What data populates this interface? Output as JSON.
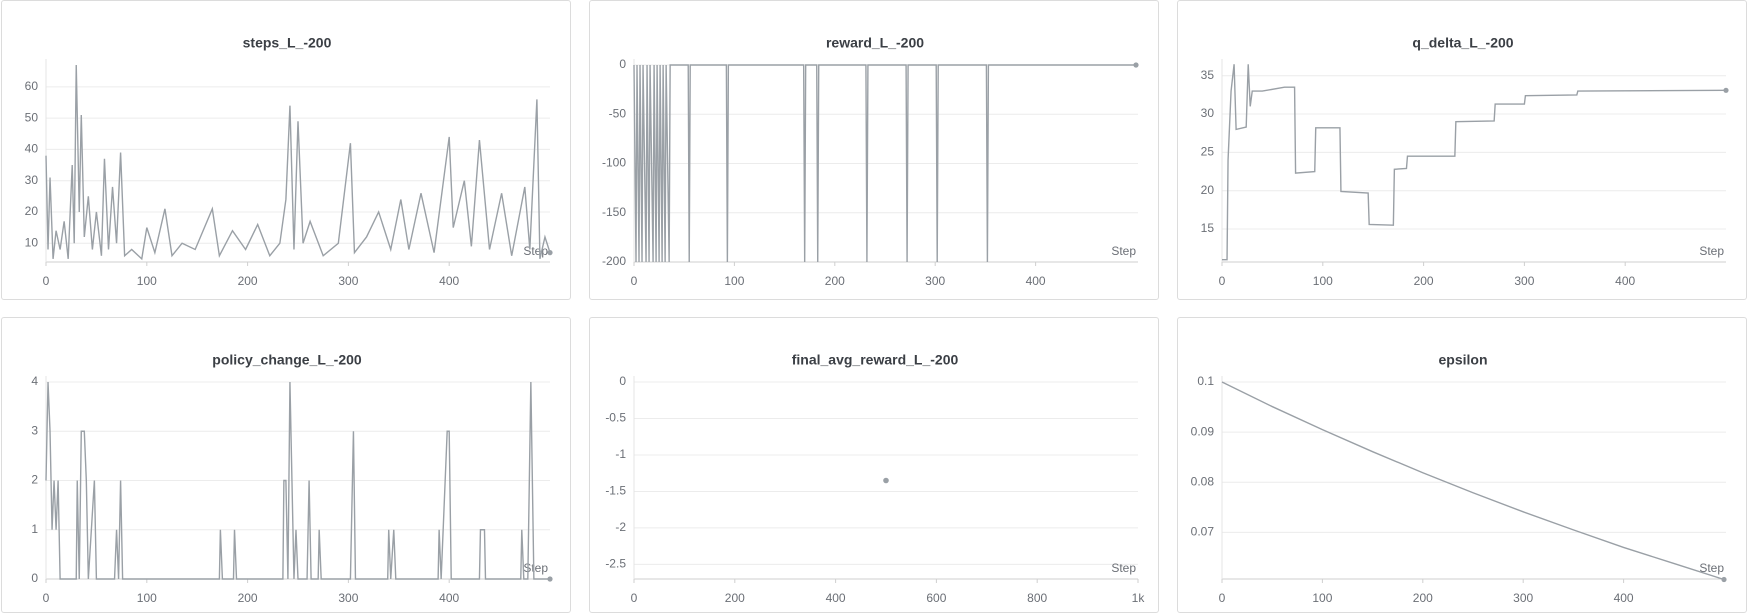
{
  "chart_data": [
    {
      "type": "line",
      "title": "steps_L_-200",
      "x_label": "Step",
      "color": "#9aa0a6",
      "grid": true,
      "x": [
        0,
        2,
        4,
        7,
        10,
        14,
        18,
        22,
        26,
        28,
        30,
        33,
        35,
        38,
        42,
        46,
        50,
        55,
        58,
        62,
        66,
        70,
        74,
        78,
        85,
        95,
        100,
        108,
        118,
        125,
        135,
        148,
        165,
        172,
        185,
        198,
        210,
        222,
        232,
        238,
        242,
        246,
        250,
        255,
        262,
        275,
        290,
        302,
        306,
        318,
        330,
        342,
        352,
        360,
        372,
        385,
        400,
        404,
        415,
        422,
        430,
        440,
        452,
        462,
        475,
        480,
        487,
        490,
        495,
        500
      ],
      "values": [
        38,
        8,
        31,
        5,
        14,
        8,
        17,
        5,
        35,
        10,
        67,
        20,
        51,
        12,
        25,
        8,
        20,
        6,
        37,
        8,
        28,
        10,
        39,
        6,
        8,
        5,
        15,
        7,
        21,
        6,
        10,
        8,
        21,
        6,
        14,
        8,
        16,
        6,
        10,
        24,
        54,
        8,
        49,
        10,
        17,
        6,
        10,
        42,
        7,
        12,
        20,
        8,
        24,
        8,
        26,
        7,
        44,
        15,
        30,
        9,
        43,
        8,
        26,
        6,
        28,
        8,
        56,
        5,
        12,
        7
      ],
      "xlim": [
        0,
        500
      ],
      "ylim": [
        4,
        67
      ],
      "xticks": [
        0,
        100,
        200,
        300,
        400
      ],
      "yticks": [
        10,
        20,
        30,
        40,
        50,
        60
      ]
    },
    {
      "type": "line",
      "title": "reward_L_-200",
      "x_label": "Step",
      "color": "#9aa0a6",
      "grid": true,
      "x": [
        0,
        2,
        3,
        5,
        6,
        8,
        9,
        12,
        13,
        15,
        16,
        19,
        20,
        22,
        23,
        25,
        26,
        28,
        29,
        31,
        32,
        35,
        36,
        54,
        55,
        56,
        92,
        93,
        94,
        169,
        170,
        171,
        182,
        183,
        184,
        231,
        232,
        233,
        271,
        272,
        273,
        301,
        302,
        303,
        351,
        352,
        353,
        500
      ],
      "values": [
        0,
        -200,
        0,
        -200,
        0,
        -200,
        0,
        -200,
        0,
        -200,
        0,
        -200,
        0,
        -200,
        0,
        -200,
        0,
        -200,
        0,
        -200,
        0,
        -200,
        0,
        0,
        -200,
        0,
        0,
        -200,
        0,
        0,
        -200,
        0,
        0,
        -200,
        0,
        0,
        -200,
        0,
        0,
        -200,
        0,
        0,
        -200,
        0,
        0,
        -200,
        0,
        0
      ],
      "xlim": [
        0,
        502
      ],
      "ylim": [
        -200,
        0
      ],
      "xticks": [
        0,
        100,
        200,
        300,
        400
      ],
      "yticks": [
        0,
        -50,
        -100,
        -150,
        -200
      ]
    },
    {
      "type": "line",
      "title": "q_delta_L_-200",
      "x_label": "Step",
      "color": "#9aa0a6",
      "grid": true,
      "x": [
        0,
        5,
        6,
        9,
        12,
        14,
        24,
        26,
        28,
        30,
        40,
        62,
        72,
        73,
        92,
        93,
        117,
        118,
        145,
        146,
        170,
        171,
        183,
        184,
        231,
        232,
        270,
        271,
        300,
        301,
        352,
        353,
        500
      ],
      "values": [
        11,
        11,
        24,
        33,
        36.5,
        28,
        28.3,
        36.5,
        31,
        33,
        33,
        33.5,
        33.5,
        22.3,
        22.5,
        28.2,
        28.2,
        19.9,
        19.7,
        15.6,
        15.5,
        22.8,
        22.9,
        24.5,
        24.5,
        29,
        29.1,
        31.3,
        31.3,
        32.4,
        32.5,
        33,
        33.1
      ],
      "xlim": [
        0,
        500
      ],
      "ylim": [
        10.7,
        36.4
      ],
      "xticks": [
        0,
        100,
        200,
        300,
        400
      ],
      "yticks": [
        15,
        20,
        25,
        30,
        35
      ]
    },
    {
      "type": "line",
      "title": "policy_change_L_-200",
      "x_label": "Step",
      "color": "#9aa0a6",
      "grid": true,
      "x": [
        0,
        2,
        4,
        6,
        8,
        10,
        12,
        14,
        30,
        31,
        33,
        35,
        38,
        40,
        42,
        48,
        50,
        68,
        70,
        72,
        74,
        76,
        172,
        173,
        175,
        186,
        187,
        189,
        235,
        236,
        238,
        240,
        242,
        244,
        246,
        248,
        250,
        259,
        261,
        263,
        270,
        271,
        273,
        302,
        305,
        307,
        339,
        340,
        342,
        345,
        347,
        389,
        390,
        392,
        396,
        398,
        400,
        402,
        430,
        431,
        435,
        436,
        471,
        472,
        474,
        478,
        481,
        484,
        500
      ],
      "values": [
        2,
        4,
        3,
        1,
        2,
        1,
        2,
        0,
        0,
        2,
        0,
        3,
        3,
        2,
        0,
        2,
        0,
        0,
        1,
        0,
        2,
        0,
        0,
        1,
        0,
        0,
        1,
        0,
        0,
        2,
        2,
        0,
        4,
        2,
        0,
        1,
        0,
        0,
        2,
        0,
        0,
        1,
        0,
        0,
        3,
        0,
        0,
        1,
        0,
        1,
        0,
        0,
        1,
        0,
        2,
        3,
        3,
        0,
        0,
        1,
        1,
        0,
        0,
        1,
        0,
        0,
        4,
        0,
        0
      ],
      "xlim": [
        0,
        500
      ],
      "ylim": [
        0,
        4
      ],
      "xticks": [
        0,
        100,
        200,
        300,
        400
      ],
      "yticks": [
        0,
        1,
        2,
        3,
        4
      ]
    },
    {
      "type": "scatter",
      "title": "final_avg_reward_L_-200",
      "x_label": "Step",
      "color": "#9aa0a6",
      "grid": true,
      "x": [
        500
      ],
      "values": [
        -1.35
      ],
      "xlim": [
        0,
        1000
      ],
      "ylim": [
        -2.7,
        0
      ],
      "xticks": [
        0,
        200,
        400,
        600,
        800,
        {
          "value": 1000,
          "label": "1k"
        }
      ],
      "yticks": [
        0,
        -0.5,
        -1,
        -1.5,
        -2,
        -2.5
      ]
    },
    {
      "type": "line",
      "title": "epsilon",
      "x_label": "Step",
      "color": "#9aa0a6",
      "grid": true,
      "x": [
        0,
        50,
        100,
        150,
        200,
        250,
        300,
        350,
        400,
        450,
        500
      ],
      "values": [
        0.1,
        0.0951,
        0.0905,
        0.0861,
        0.0819,
        0.0779,
        0.0741,
        0.0705,
        0.067,
        0.0638,
        0.0606
      ],
      "xlim": [
        0,
        502
      ],
      "ylim": [
        0.0607,
        0.1
      ],
      "xticks": [
        0,
        100,
        200,
        300,
        400
      ],
      "yticks": [
        0.07,
        0.08,
        0.09,
        0.1
      ]
    }
  ]
}
